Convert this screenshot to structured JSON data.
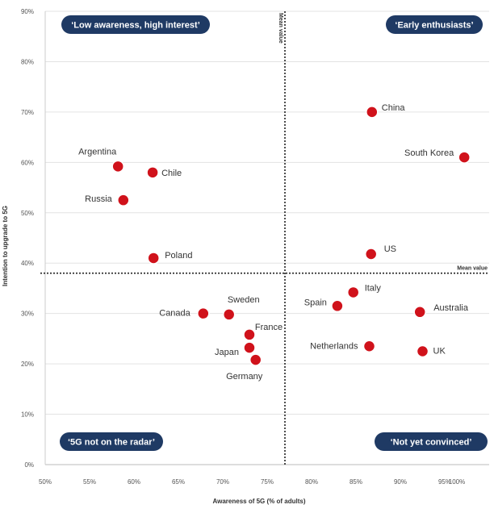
{
  "chart_data": {
    "type": "scatter",
    "xlabel": "Awareness of 5G (% of adults)",
    "ylabel": "Intention to upgrade to 5G",
    "xlim": [
      50,
      100
    ],
    "ylim": [
      0,
      90
    ],
    "x_ticks": [
      "50%",
      "55%",
      "60%",
      "65%",
      "70%",
      "75%",
      "80%",
      "85%",
      "90%",
      "95%",
      "100%"
    ],
    "y_ticks": [
      "0%",
      "10%",
      "20%",
      "30%",
      "40%",
      "50%",
      "60%",
      "70%",
      "80%",
      "90%"
    ],
    "grid": true,
    "points": [
      {
        "label": "China",
        "x": 86.8,
        "y": 70.0
      },
      {
        "label": "South Korea",
        "x": 97.2,
        "y": 61.0
      },
      {
        "label": "US",
        "x": 86.7,
        "y": 41.8
      },
      {
        "label": "Argentina",
        "x": 58.2,
        "y": 59.2
      },
      {
        "label": "Chile",
        "x": 62.1,
        "y": 58.0
      },
      {
        "label": "Russia",
        "x": 58.8,
        "y": 52.5
      },
      {
        "label": "Poland",
        "x": 62.2,
        "y": 41.0
      },
      {
        "label": "Italy",
        "x": 84.7,
        "y": 34.2
      },
      {
        "label": "Spain",
        "x": 82.9,
        "y": 31.5
      },
      {
        "label": "Australia",
        "x": 92.2,
        "y": 30.3
      },
      {
        "label": "Netherlands",
        "x": 86.5,
        "y": 23.5
      },
      {
        "label": "UK",
        "x": 92.5,
        "y": 22.5
      },
      {
        "label": "Canada",
        "x": 67.8,
        "y": 30.0
      },
      {
        "label": "Sweden",
        "x": 70.7,
        "y": 29.8
      },
      {
        "label": "France",
        "x": 73.0,
        "y": 25.8
      },
      {
        "label": "Japan",
        "x": 73.0,
        "y": 23.2
      },
      {
        "label": "Germany",
        "x": 73.7,
        "y": 20.8
      }
    ],
    "mean_x": 77.0,
    "mean_y": 38.0,
    "mean_x_label": "Mean value",
    "mean_y_label": "Mean value",
    "quadrants": {
      "top_left": "‘Low awareness, high interest’",
      "top_right": "‘Early enthusiasts’",
      "bottom_left": "‘5G not on the radar’",
      "bottom_right": "‘Not yet convinced’"
    },
    "colors": {
      "point": "#d0121b",
      "point_stroke": "#ffffff",
      "quadrant_bg": "#1f3a64",
      "grid": "#e3e3e3",
      "mean_line": "#222222"
    }
  }
}
